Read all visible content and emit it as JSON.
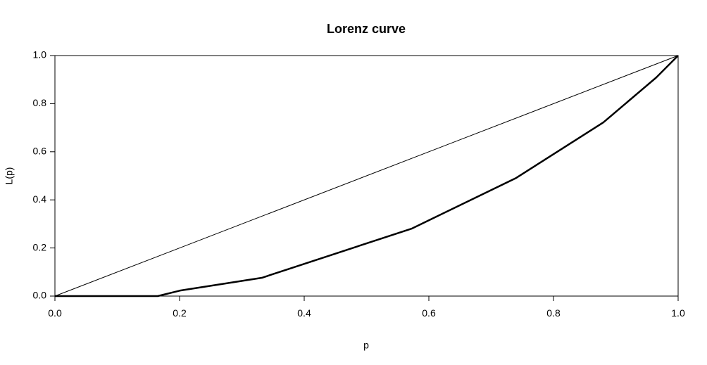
{
  "chart_data": {
    "type": "line",
    "title": "Lorenz curve",
    "x_label": "p",
    "y_label": "L(p)",
    "series": [
      {
        "color": "#000000",
        "x": [
          0,
          1
        ],
        "values": [
          0,
          1
        ]
      },
      {
        "color": "#000000",
        "x": [
          0,
          0.165,
          0.201,
          0.332,
          0.573,
          0.74,
          0.88,
          0.965,
          1
        ],
        "values": [
          0,
          0,
          0.023,
          0.076,
          0.281,
          0.491,
          0.722,
          0.909,
          1
        ]
      }
    ],
    "xlim": [
      0,
      1
    ],
    "ylim": [
      0,
      1
    ],
    "xticks": [
      {
        "value": 0,
        "label": "0.0"
      },
      {
        "value": 0.2,
        "label": "0.2"
      },
      {
        "value": 0.4,
        "label": "0.4"
      },
      {
        "value": 0.6,
        "label": "0.6"
      },
      {
        "value": 0.8,
        "label": "0.8"
      },
      {
        "value": 1,
        "label": "1.0"
      }
    ],
    "yticks": [
      {
        "value": 0,
        "label": "0.0"
      },
      {
        "value": 0.2,
        "label": "0.2"
      },
      {
        "value": 0.4,
        "label": "0.4"
      },
      {
        "value": 0.6,
        "label": "0.6"
      },
      {
        "value": 0.8,
        "label": "0.8"
      },
      {
        "value": 1,
        "label": "1.0"
      }
    ],
    "grid": false
  }
}
